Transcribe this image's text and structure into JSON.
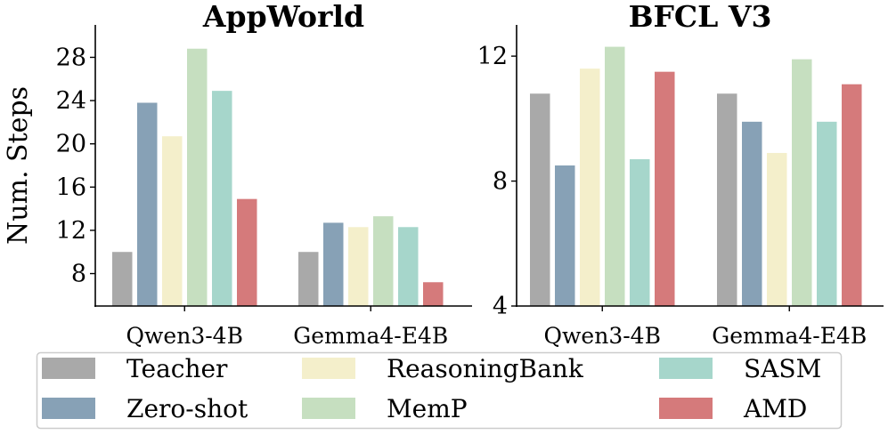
{
  "chart_data": [
    {
      "type": "bar",
      "title": "AppWorld",
      "ylabel": "Num. Steps",
      "categories": [
        "Qwen3-4B",
        "Gemma4-E4B"
      ],
      "yticks": [
        8,
        12,
        16,
        20,
        24,
        28
      ],
      "ylim": [
        5,
        31
      ],
      "grid": false,
      "series": [
        {
          "name": "Teacher",
          "values": [
            10.0,
            10.0
          ]
        },
        {
          "name": "Zero-shot",
          "values": [
            23.8,
            12.7
          ]
        },
        {
          "name": "ReasoningBank",
          "values": [
            20.7,
            12.3
          ]
        },
        {
          "name": "MemP",
          "values": [
            28.8,
            13.3
          ]
        },
        {
          "name": "SASM",
          "values": [
            24.9,
            12.3
          ]
        },
        {
          "name": "AMD",
          "values": [
            14.9,
            7.2
          ]
        }
      ]
    },
    {
      "type": "bar",
      "title": "BFCL V3",
      "ylabel": "",
      "categories": [
        "Qwen3-4B",
        "Gemma4-E4B"
      ],
      "yticks": [
        4,
        8,
        12
      ],
      "ylim": [
        4,
        13
      ],
      "grid": false,
      "series": [
        {
          "name": "Teacher",
          "values": [
            10.8,
            10.8
          ]
        },
        {
          "name": "Zero-shot",
          "values": [
            8.5,
            9.9
          ]
        },
        {
          "name": "ReasoningBank",
          "values": [
            11.6,
            8.9
          ]
        },
        {
          "name": "MemP",
          "values": [
            12.3,
            11.9
          ]
        },
        {
          "name": "SASM",
          "values": [
            8.7,
            9.9
          ]
        },
        {
          "name": "AMD",
          "values": [
            11.5,
            11.1
          ]
        }
      ]
    }
  ],
  "legend": {
    "placement": "bottom",
    "entries": [
      "Teacher",
      "Zero-shot",
      "ReasoningBank",
      "MemP",
      "SASM",
      "AMD"
    ]
  },
  "colors": {
    "Teacher": "#a9a9a9",
    "Zero-shot": "#87a1b6",
    "ReasoningBank": "#f4efcb",
    "MemP": "#c6dfc0",
    "SASM": "#a6d6cb",
    "AMD": "#d57a7b"
  }
}
